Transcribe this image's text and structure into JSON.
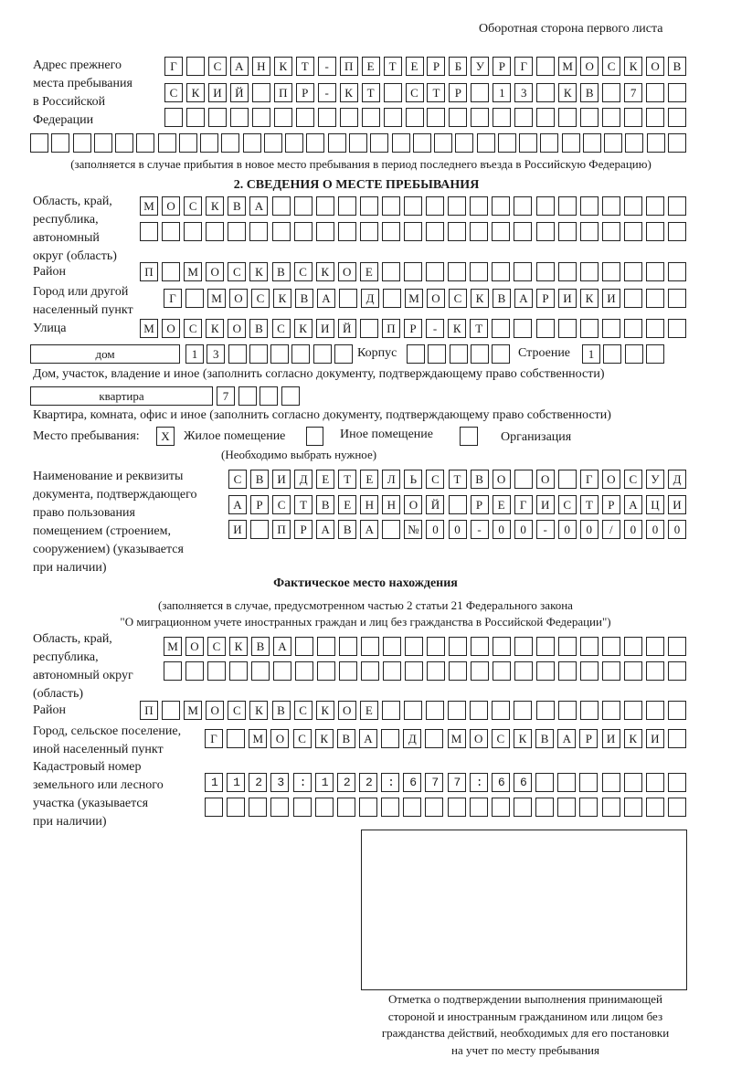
{
  "header": "Оборотная сторона первого листа",
  "prev_address": {
    "label": "Адрес прежнего\nместа пребывания\nв Российской\nФедерации",
    "rows": [
      "Г САНКТ-ПЕТЕРБУРГ МОСКОВ",
      "СКИЙ ПР-КТ СТР 13 КВ 7",
      "",
      ""
    ],
    "note": "(заполняется в случае прибытия в новое место пребывания в период последнего въезда в Российскую Федерацию)"
  },
  "section2": {
    "title": "2. СВЕДЕНИЯ О МЕСТЕ ПРЕБЫВАНИЯ",
    "region_label": "Область, край,\nреспублика,\nавтономный\nокруг (область)",
    "region_rows": [
      "МОСКВА",
      ""
    ],
    "district_label": "Район",
    "district": "П МОСКВСКОЕ",
    "city_label": "Город или другой\nнаселенный пункт",
    "city": "Г МОСКВА Д МОСКВАРИКИ",
    "street_label": "Улица",
    "street": "МОСКОВСКИЙ ПР-КТ",
    "house_type": "дом",
    "house": "13",
    "korpus_label": "Корпус",
    "korpus": "",
    "building_label": "Строение",
    "building": "1",
    "house_note": "Дом, участок, владение и иное (заполнить согласно документу, подтверждающему право собственности)",
    "apt_type": "квартира",
    "apt": "7",
    "apt_note": "Квартира, комната, офис и иное (заполнить согласно документу, подтверждающему право собственности)",
    "stay_label": "Место пребывания:",
    "stay_options": [
      {
        "label": "Жилое помещение",
        "checked": true,
        "mark": "X"
      },
      {
        "label": "Иное помещение",
        "checked": false,
        "mark": ""
      },
      {
        "label": "Организация",
        "checked": false,
        "mark": ""
      }
    ],
    "stay_note": "(Необходимо выбрать нужное)",
    "doc_label": "Наименование и реквизиты\nдокумента, подтверждающего\nправо пользования\nпомещением (строением,\nсооружением) (указывается\nпри наличии)",
    "doc_rows": [
      "СВИДЕТЕЛЬСТВО О ГОСУД",
      "АРСТВЕННОЙ РЕГИСТРАЦИ",
      "И ПРАВА №00-00-00/000"
    ]
  },
  "actual": {
    "title": "Фактическое место нахождения",
    "note1": "(заполняется в случае, предусмотренном частью 2 статьи 21 Федерального закона",
    "note2": "\"О миграционном учете иностранных граждан и лиц без гражданства в Российской Федерации\")",
    "region_label": "Область, край,\nреспублика,\nавтономный округ\n(область)",
    "region_rows": [
      "МОСКВА",
      ""
    ],
    "district_label": "Район",
    "district": "П МОСКВСКОЕ",
    "city_label": "Город, сельское поселение,\nиной населенный пункт",
    "city": "Г МОСКВА Д МОСКВАРИКИ",
    "cadastre_label": "Кадастровый номер\nземельного или лесного\nучастка (указывается\nпри наличии)",
    "cadastre_rows": [
      "1123:122:677:66",
      ""
    ]
  },
  "confirmation": "Отметка о подтверждении выполнения принимающей\nстороной и иностранным гражданином или лицом без\nгражданства действий, необходимых для его постановки\nна учет по месту пребывания"
}
